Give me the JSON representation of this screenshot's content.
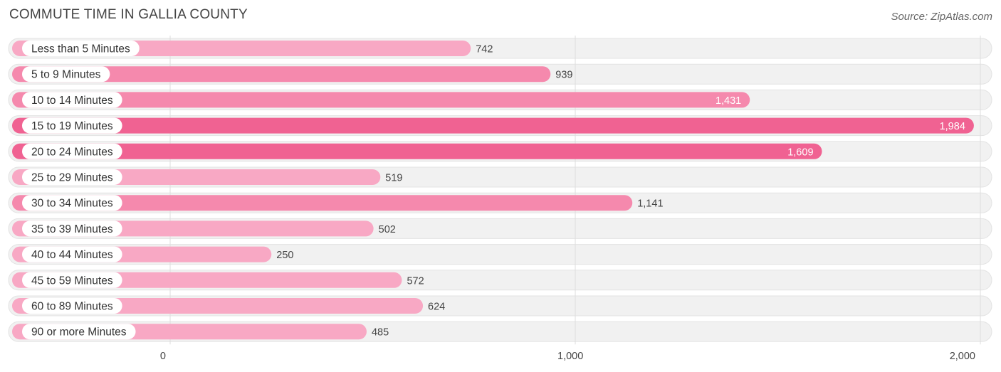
{
  "title": "COMMUTE TIME IN GALLIA COUNTY",
  "source": "Source: ZipAtlas.com",
  "colors": {
    "bar_low": "#f8a8c4",
    "bar_mid": "#f589ad",
    "bar_high": "#f06292",
    "row_bg": "#f1f1f1",
    "grid": "#dddddd"
  },
  "chart_data": {
    "type": "bar",
    "orientation": "horizontal",
    "categories": [
      "Less than 5 Minutes",
      "5 to 9 Minutes",
      "10 to 14 Minutes",
      "15 to 19 Minutes",
      "20 to 24 Minutes",
      "25 to 29 Minutes",
      "30 to 34 Minutes",
      "35 to 39 Minutes",
      "40 to 44 Minutes",
      "45 to 59 Minutes",
      "60 to 89 Minutes",
      "90 or more Minutes"
    ],
    "values": [
      742,
      939,
      1431,
      1984,
      1609,
      519,
      1141,
      502,
      250,
      572,
      624,
      485
    ],
    "value_labels": [
      "742",
      "939",
      "1,431",
      "1,984",
      "1,609",
      "519",
      "1,141",
      "502",
      "250",
      "572",
      "624",
      "485"
    ],
    "xlim": [
      0,
      2000
    ],
    "xticks": [
      0,
      1000,
      2000
    ],
    "xtick_labels": [
      "0",
      "1,000",
      "2,000"
    ],
    "grid": true,
    "legend": "none"
  }
}
